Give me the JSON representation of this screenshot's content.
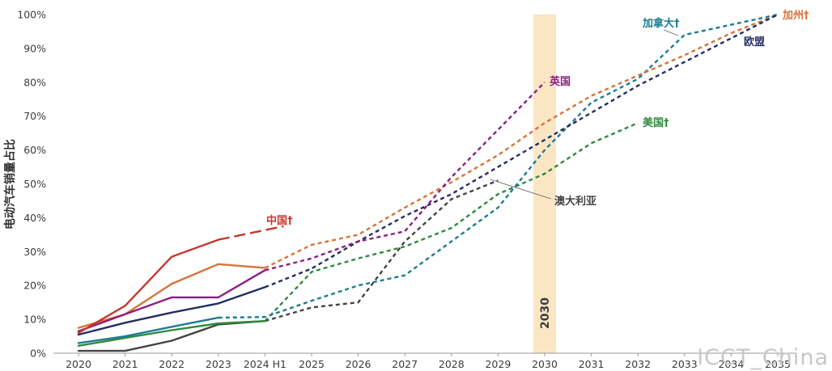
{
  "chart_data": {
    "type": "line",
    "title": "",
    "xlabel": "",
    "ylabel": "电动汽车销量占比",
    "categories": [
      "2020",
      "2021",
      "2022",
      "2023",
      "2024 H1",
      "2025",
      "2026",
      "2027",
      "2028",
      "2029",
      "2030",
      "2031",
      "2032",
      "2033",
      "2034",
      "2035"
    ],
    "y_ticks": [
      "0%",
      "10%",
      "20%",
      "30%",
      "40%",
      "50%",
      "60%",
      "70%",
      "80%",
      "90%",
      "100%"
    ],
    "ylim": [
      0,
      100
    ],
    "highlight": {
      "label": "2030",
      "x_index": 10,
      "color": "#fbe6c4"
    },
    "grid": false,
    "series": [
      {
        "name": "中国†",
        "color": "#c8372d",
        "solid": [
          [
            0,
            6
          ],
          [
            1,
            14
          ],
          [
            2,
            28.5
          ],
          [
            3,
            33.5
          ]
        ],
        "dashed": [
          [
            3,
            33.5
          ],
          [
            4.4,
            37.5
          ]
        ]
      },
      {
        "name": "",
        "color": "#d6743a",
        "solid": [
          [
            0,
            7.5
          ],
          [
            1,
            11.5
          ],
          [
            2,
            20.5
          ],
          [
            3,
            26.3
          ],
          [
            4,
            25.2
          ]
        ],
        "dashed": [
          [
            4,
            25.2
          ],
          [
            5,
            32
          ],
          [
            6,
            35
          ],
          [
            7,
            43
          ],
          [
            8,
            50.5
          ],
          [
            9,
            58.5
          ],
          [
            10,
            68
          ],
          [
            11,
            76
          ],
          [
            12,
            82
          ],
          [
            13,
            88
          ],
          [
            14,
            94.5
          ],
          [
            15,
            100
          ]
        ]
      },
      {
        "name": "英国",
        "color": "#8b1f7f",
        "solid": [
          [
            0,
            6.5
          ],
          [
            1,
            11.5
          ],
          [
            2,
            16.5
          ],
          [
            3,
            16.5
          ],
          [
            4,
            24.5
          ]
        ],
        "dashed": [
          [
            4,
            24.5
          ],
          [
            5,
            28
          ],
          [
            6,
            33
          ],
          [
            7,
            36
          ],
          [
            8,
            52
          ],
          [
            9,
            66
          ],
          [
            10,
            80
          ]
        ]
      },
      {
        "name": "欧盟",
        "color": "#232e63",
        "solid": [
          [
            0,
            5.5
          ],
          [
            1,
            9
          ],
          [
            2,
            12
          ],
          [
            3,
            14.7
          ],
          [
            4,
            19.5
          ]
        ],
        "dashed": [
          [
            4,
            19.5
          ],
          [
            5,
            25
          ],
          [
            6,
            33
          ],
          [
            7,
            40.5
          ],
          [
            8,
            47
          ],
          [
            9,
            55
          ],
          [
            10,
            63
          ],
          [
            11,
            71
          ],
          [
            12,
            79
          ],
          [
            13,
            86
          ],
          [
            14,
            93
          ],
          [
            15,
            100
          ]
        ]
      },
      {
        "name": "加拿大†",
        "color": "#1d7d92",
        "solid": [
          [
            0,
            3
          ],
          [
            1,
            5
          ],
          [
            2,
            7.8
          ],
          [
            3,
            10.5
          ]
        ],
        "dashed": [
          [
            3,
            10.5
          ],
          [
            4,
            10.7
          ],
          [
            5,
            15.5
          ],
          [
            6,
            20
          ],
          [
            7,
            23
          ],
          [
            8,
            33
          ],
          [
            9,
            43
          ],
          [
            10,
            60
          ],
          [
            11,
            74
          ],
          [
            12,
            81
          ],
          [
            13,
            94
          ],
          [
            14,
            97
          ],
          [
            15,
            100
          ]
        ]
      },
      {
        "name": "美国†",
        "color": "#2f8a3d",
        "solid": [
          [
            0,
            2.2
          ],
          [
            1,
            4.5
          ],
          [
            2,
            6.8
          ],
          [
            3,
            8.8
          ],
          [
            4,
            9.5
          ]
        ],
        "dashed": [
          [
            4,
            9.5
          ],
          [
            5,
            24
          ],
          [
            6,
            28
          ],
          [
            7,
            31.5
          ],
          [
            8,
            37
          ],
          [
            9,
            47
          ],
          [
            10,
            53
          ],
          [
            11,
            62
          ],
          [
            12,
            68
          ]
        ]
      },
      {
        "name": "澳大利亚",
        "color": "#444444",
        "solid": [
          [
            0,
            0.7
          ],
          [
            1,
            0.7
          ],
          [
            2,
            3.7
          ],
          [
            3,
            8.5
          ],
          [
            4,
            9.5
          ]
        ],
        "dashed": [
          [
            4,
            9.5
          ],
          [
            5,
            13.5
          ],
          [
            6,
            15
          ],
          [
            7,
            33
          ],
          [
            8,
            45.5
          ],
          [
            9,
            51
          ]
        ]
      }
    ],
    "labels": [
      {
        "text": "中国†",
        "color": "#c8372d"
      },
      {
        "text": "加州†",
        "color": "#d6743a"
      },
      {
        "text": "英国",
        "color": "#8b1f7f"
      },
      {
        "text": "欧盟",
        "color": "#232e63"
      },
      {
        "text": "加拿大†",
        "color": "#1d7d92"
      },
      {
        "text": "美国†",
        "color": "#2f8a3d"
      },
      {
        "text": "澳大利亚",
        "color": "#444444"
      }
    ]
  },
  "watermark": "ICCT_China"
}
